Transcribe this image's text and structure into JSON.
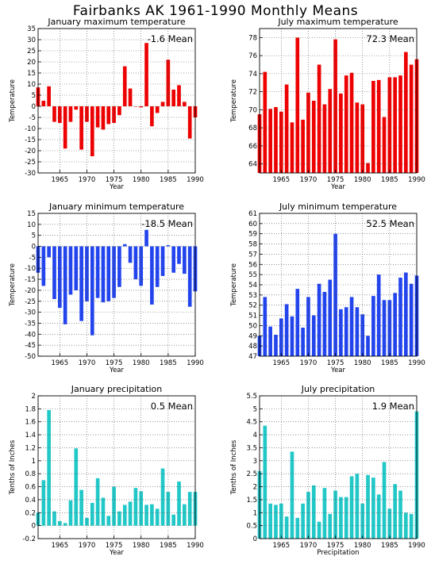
{
  "title": "Fairbanks AK   1961-1990 Monthly Means",
  "chart_data": [
    {
      "type": "bar",
      "title": "January maximum temperature",
      "ylabel": "Temperature",
      "xlabel": "Year",
      "mean_label": "-1.6 Mean",
      "color": "#ee0000",
      "ylim": [
        -30,
        35
      ],
      "yticks": [
        -30,
        -25,
        -20,
        -15,
        -10,
        -5,
        0,
        5,
        10,
        15,
        20,
        25,
        30,
        35
      ],
      "ytick_labels": [
        "-30",
        "-25",
        "-20",
        "-15",
        "-10",
        "-5",
        "0",
        "5",
        "10",
        "15",
        "20",
        "25",
        "30",
        "35"
      ],
      "xlim": [
        1961,
        1990
      ],
      "xticks": [
        1965,
        1970,
        1975,
        1980,
        1985,
        1990
      ],
      "xtick_labels": [
        "1965",
        "1970",
        "1975",
        "1980",
        "1985",
        "1990"
      ],
      "x": [
        1961,
        1962,
        1963,
        1964,
        1965,
        1966,
        1967,
        1968,
        1969,
        1970,
        1971,
        1972,
        1973,
        1974,
        1975,
        1976,
        1977,
        1978,
        1979,
        1980,
        1981,
        1982,
        1983,
        1984,
        1985,
        1986,
        1987,
        1988,
        1989,
        1990
      ],
      "values": [
        8.5,
        2.5,
        9,
        -7,
        -7.5,
        -19,
        -7,
        -1.5,
        -19.5,
        -7,
        -22.5,
        -9.5,
        -10.5,
        -8,
        -7.5,
        -4,
        18,
        8,
        0,
        -0.5,
        28.5,
        -9,
        -3,
        2,
        21,
        7.5,
        9.5,
        2,
        -14.5,
        -5
      ]
    },
    {
      "type": "bar",
      "title": "July maximum temperature",
      "ylabel": "Temperature",
      "xlabel": "Year",
      "mean_label": "72.3 Mean",
      "color": "#ee0000",
      "ylim": [
        63,
        79
      ],
      "yticks": [
        64,
        66,
        68,
        70,
        72,
        74,
        76,
        78
      ],
      "ytick_labels": [
        "64",
        "66",
        "68",
        "70",
        "72",
        "74",
        "76",
        "78"
      ],
      "xlim": [
        1961,
        1990
      ],
      "xticks": [
        1965,
        1970,
        1975,
        1980,
        1985,
        1990
      ],
      "xtick_labels": [
        "1965",
        "1970",
        "1975",
        "1980",
        "1985",
        "1990"
      ],
      "x": [
        1961,
        1962,
        1963,
        1964,
        1965,
        1966,
        1967,
        1968,
        1969,
        1970,
        1971,
        1972,
        1973,
        1974,
        1975,
        1976,
        1977,
        1978,
        1979,
        1980,
        1981,
        1982,
        1983,
        1984,
        1985,
        1986,
        1987,
        1988,
        1989,
        1990
      ],
      "values": [
        69.5,
        74.2,
        70.1,
        70.3,
        69.8,
        72.8,
        68.6,
        78,
        68.9,
        71.9,
        71,
        75,
        70.6,
        72.3,
        77.8,
        71.8,
        73.8,
        74.1,
        70.8,
        70.6,
        64.1,
        73.2,
        73.3,
        69.2,
        73.6,
        73.6,
        73.8,
        76.4,
        75,
        75.6
      ]
    },
    {
      "type": "bar",
      "title": "January minimum temperature",
      "ylabel": "Temperature",
      "xlabel": "Year",
      "mean_label": "-18.5 Mean",
      "color": "#2244ee",
      "ylim": [
        -50,
        15
      ],
      "yticks": [
        -50,
        -45,
        -40,
        -35,
        -30,
        -25,
        -20,
        -15,
        -10,
        -5,
        0,
        5,
        10,
        15
      ],
      "ytick_labels": [
        "-50",
        "-45",
        "-40",
        "-35",
        "-30",
        "-25",
        "-20",
        "-15",
        "-10",
        "-5",
        "0",
        "5",
        "10",
        "15"
      ],
      "xlim": [
        1961,
        1990
      ],
      "xticks": [
        1965,
        1970,
        1975,
        1980,
        1985,
        1990
      ],
      "xtick_labels": [
        "1965",
        "1970",
        "1975",
        "1980",
        "1985",
        "1990"
      ],
      "x": [
        1961,
        1962,
        1963,
        1964,
        1965,
        1966,
        1967,
        1968,
        1969,
        1970,
        1971,
        1972,
        1973,
        1974,
        1975,
        1976,
        1977,
        1978,
        1979,
        1980,
        1981,
        1982,
        1983,
        1984,
        1985,
        1986,
        1987,
        1988,
        1989,
        1990
      ],
      "values": [
        -12,
        -18,
        -5,
        -24,
        -28,
        -35.5,
        -22,
        -20,
        -34,
        -25,
        -40.5,
        -23.5,
        -25.5,
        -25,
        -23.5,
        -18.5,
        1,
        -7.5,
        -15,
        -18,
        7.5,
        -26.5,
        -18.5,
        -13.5,
        0.5,
        -12,
        -8,
        -12.5,
        -27.5,
        -20.5
      ]
    },
    {
      "type": "bar",
      "title": "July minimum temperature",
      "ylabel": "Temperature",
      "xlabel": "Year",
      "mean_label": "52.5 Mean",
      "color": "#2244ee",
      "ylim": [
        47,
        61
      ],
      "yticks": [
        47,
        48,
        49,
        50,
        51,
        52,
        53,
        54,
        55,
        56,
        57,
        58,
        59,
        60,
        61
      ],
      "ytick_labels": [
        "47",
        "48",
        "49",
        "50",
        "51",
        "52",
        "53",
        "54",
        "55",
        "56",
        "57",
        "58",
        "59",
        "60",
        "61"
      ],
      "xlim": [
        1961,
        1990
      ],
      "xticks": [
        1965,
        1970,
        1975,
        1980,
        1985,
        1990
      ],
      "xtick_labels": [
        "1965",
        "1970",
        "1975",
        "1980",
        "1985",
        "1990"
      ],
      "x": [
        1961,
        1962,
        1963,
        1964,
        1965,
        1966,
        1967,
        1968,
        1969,
        1970,
        1971,
        1972,
        1973,
        1974,
        1975,
        1976,
        1977,
        1978,
        1979,
        1980,
        1981,
        1982,
        1983,
        1984,
        1985,
        1986,
        1987,
        1988,
        1989,
        1990
      ],
      "values": [
        49,
        52.8,
        49.9,
        49.1,
        50.7,
        52.1,
        50.9,
        53.6,
        49.8,
        52.8,
        51,
        54.1,
        53.3,
        54.5,
        59,
        51.6,
        51.8,
        52.8,
        51.8,
        51.1,
        49,
        52.9,
        55,
        52.5,
        52.5,
        53.2,
        54.7,
        55.2,
        54.1,
        54.9
      ]
    },
    {
      "type": "bar",
      "title": "January precipitation",
      "ylabel": "Tenths of Inches",
      "xlabel": "Year",
      "mean_label": "0.5 Mean",
      "color": "#22c8c8",
      "ylim": [
        -0.2,
        2
      ],
      "yticks": [
        -0.2,
        0,
        0.2,
        0.4,
        0.6,
        0.8,
        1,
        1.2,
        1.4,
        1.6,
        1.8,
        2
      ],
      "ytick_labels": [
        "-0.2",
        "0",
        "0.2",
        "0.4",
        "0.6",
        "0.8",
        "1",
        "1.2",
        "1.4",
        "1.6",
        "1.8",
        "2"
      ],
      "xlim": [
        1961,
        1990
      ],
      "xticks": [
        1965,
        1970,
        1975,
        1980,
        1985,
        1990
      ],
      "xtick_labels": [
        "1965",
        "1970",
        "1975",
        "1980",
        "1985",
        "1990"
      ],
      "x": [
        1961,
        1962,
        1963,
        1964,
        1965,
        1966,
        1967,
        1968,
        1969,
        1970,
        1971,
        1972,
        1973,
        1974,
        1975,
        1976,
        1977,
        1978,
        1979,
        1980,
        1981,
        1982,
        1983,
        1984,
        1985,
        1986,
        1987,
        1988,
        1989,
        1990
      ],
      "values": [
        0.2,
        0.7,
        1.78,
        0.22,
        0.07,
        0.04,
        0.39,
        1.19,
        0.55,
        0.12,
        0.35,
        0.73,
        0.43,
        0.15,
        0.6,
        0.22,
        0.32,
        0.37,
        0.58,
        0.53,
        0.32,
        0.33,
        0.26,
        0.88,
        0.52,
        0.17,
        0.68,
        0.33,
        0.52,
        0.52
      ]
    },
    {
      "type": "bar",
      "title": "July precipitation",
      "ylabel": "Tenths of Inches",
      "xlabel": "Precipitation",
      "mean_label": "1.9 Mean",
      "color": "#22c8c8",
      "ylim": [
        0,
        5.5
      ],
      "yticks": [
        0,
        0.5,
        1,
        1.5,
        2,
        2.5,
        3,
        3.5,
        4,
        4.5,
        5,
        5.5
      ],
      "ytick_labels": [
        "0",
        "0.5",
        "1",
        "1.5",
        "2",
        "2.5",
        "3",
        "3.5",
        "4",
        "4.5",
        "5",
        "5.5"
      ],
      "xlim": [
        1961,
        1990
      ],
      "xticks": [
        1965,
        1970,
        1975,
        1980,
        1985,
        1990
      ],
      "xtick_labels": [
        "1965",
        "1970",
        "1975",
        "1980",
        "1985",
        "1990"
      ],
      "x": [
        1961,
        1962,
        1963,
        1964,
        1965,
        1966,
        1967,
        1968,
        1969,
        1970,
        1971,
        1972,
        1973,
        1974,
        1975,
        1976,
        1977,
        1978,
        1979,
        1980,
        1981,
        1982,
        1983,
        1984,
        1985,
        1986,
        1987,
        1988,
        1989,
        1990
      ],
      "values": [
        2.6,
        4.35,
        1.35,
        1.3,
        1.35,
        0.85,
        3.35,
        0.8,
        1.35,
        1.8,
        2.05,
        0.65,
        1.95,
        0.95,
        1.85,
        1.6,
        1.6,
        2.4,
        2.5,
        1.35,
        2.45,
        2.35,
        1.7,
        2.95,
        1.15,
        2.1,
        1.85,
        1.0,
        0.95,
        4.9
      ]
    }
  ]
}
